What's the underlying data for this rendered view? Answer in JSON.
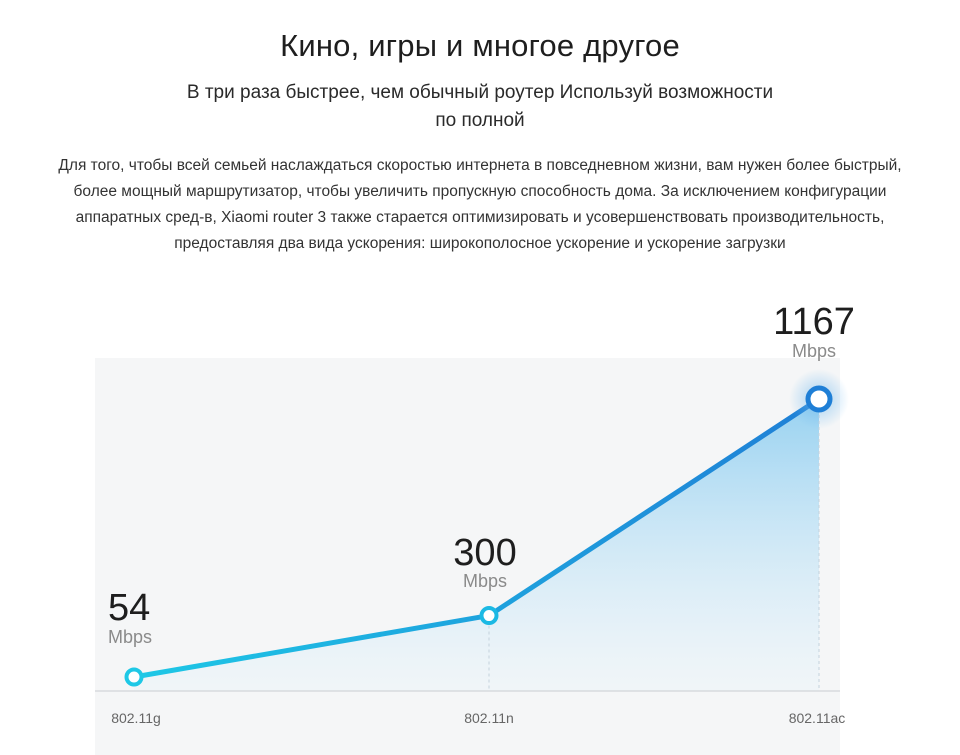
{
  "header": {
    "title": "Кино, игры и многое другое",
    "subtitle": "В три раза быстрее, чем обычный роутер Используй возможности по полной",
    "description": "Для того, чтобы всей семьей наслаждаться скоростью интернета в повседневном жизни, вам нужен более быстрый, более мощный маршрутизатор, чтобы увеличить пропускную способность дома. За исключением конфигурации аппаратных сред-в, Xiaomi router 3 также старается оптимизировать и усовершенствовать производительность, предоставляя два вида ускорения: широкополосное ускорение и ускорение загрузки"
  },
  "chart_data": {
    "type": "line",
    "categories": [
      "802.11g",
      "802.11n",
      "802.11ac"
    ],
    "values": [
      54,
      300,
      1167
    ],
    "value_labels": [
      "54",
      "300",
      "1167"
    ],
    "unit": "Mbps",
    "ylim": [
      0,
      1300
    ],
    "grid": false,
    "colors": {
      "line_start": "#1ec8e6",
      "line_end": "#1f7fd6",
      "area": "#a9d8f0",
      "background": "#f5f6f7",
      "marker_last": "#1f7fd6"
    }
  }
}
